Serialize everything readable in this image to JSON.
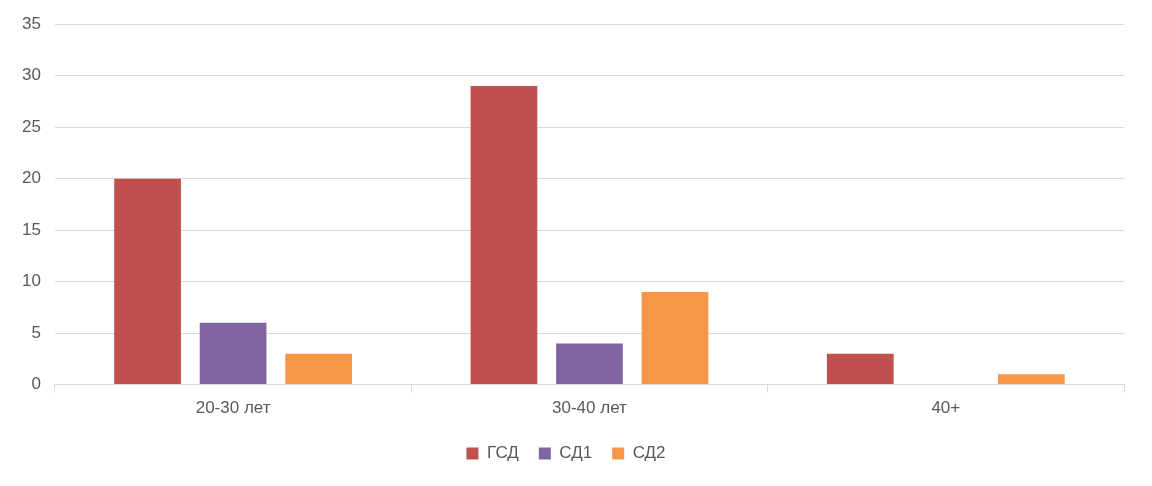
{
  "chart_data": {
    "type": "bar",
    "categories": [
      "20-30 лет",
      "30-40 лет",
      "40+"
    ],
    "series": [
      {
        "name": "ГСД",
        "color": "#c0504d",
        "values": [
          20,
          29,
          3
        ]
      },
      {
        "name": "СД1",
        "color": "#8064a2",
        "values": [
          6,
          4,
          0
        ]
      },
      {
        "name": "СД2",
        "color": "#f79646",
        "values": [
          3,
          9,
          1
        ]
      }
    ],
    "ylim": [
      0,
      35
    ],
    "yticks": [
      0,
      5,
      10,
      15,
      20,
      25,
      30,
      35
    ],
    "grid": "y",
    "legend": "bottom"
  }
}
